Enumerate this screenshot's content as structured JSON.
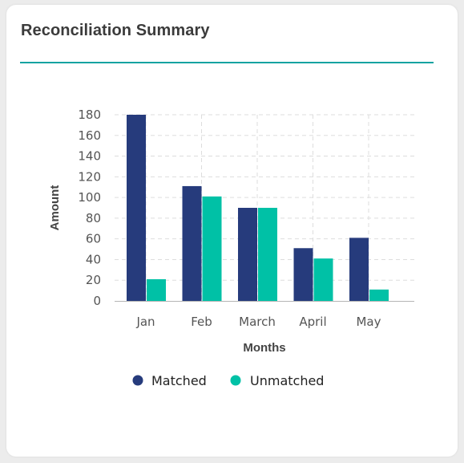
{
  "card": {
    "title": "Reconciliation Summary"
  },
  "colors": {
    "accent_rule": "#14a3a1",
    "matched": "#263b7c",
    "unmatched": "#00c1a6"
  },
  "chart_data": {
    "type": "bar",
    "categories": [
      "Jan",
      "Feb",
      "March",
      "April",
      "May"
    ],
    "series": [
      {
        "name": "Matched",
        "values": [
          180,
          111,
          90,
          51,
          61
        ]
      },
      {
        "name": "Unmatched",
        "values": [
          21,
          101,
          90,
          41,
          11
        ]
      }
    ],
    "xlabel": "Months",
    "ylabel": "Amount",
    "ylim": [
      0,
      180
    ],
    "yticks": [
      0,
      20,
      40,
      60,
      80,
      100,
      120,
      140,
      160,
      180
    ],
    "grid": true,
    "legend_position": "bottom"
  }
}
